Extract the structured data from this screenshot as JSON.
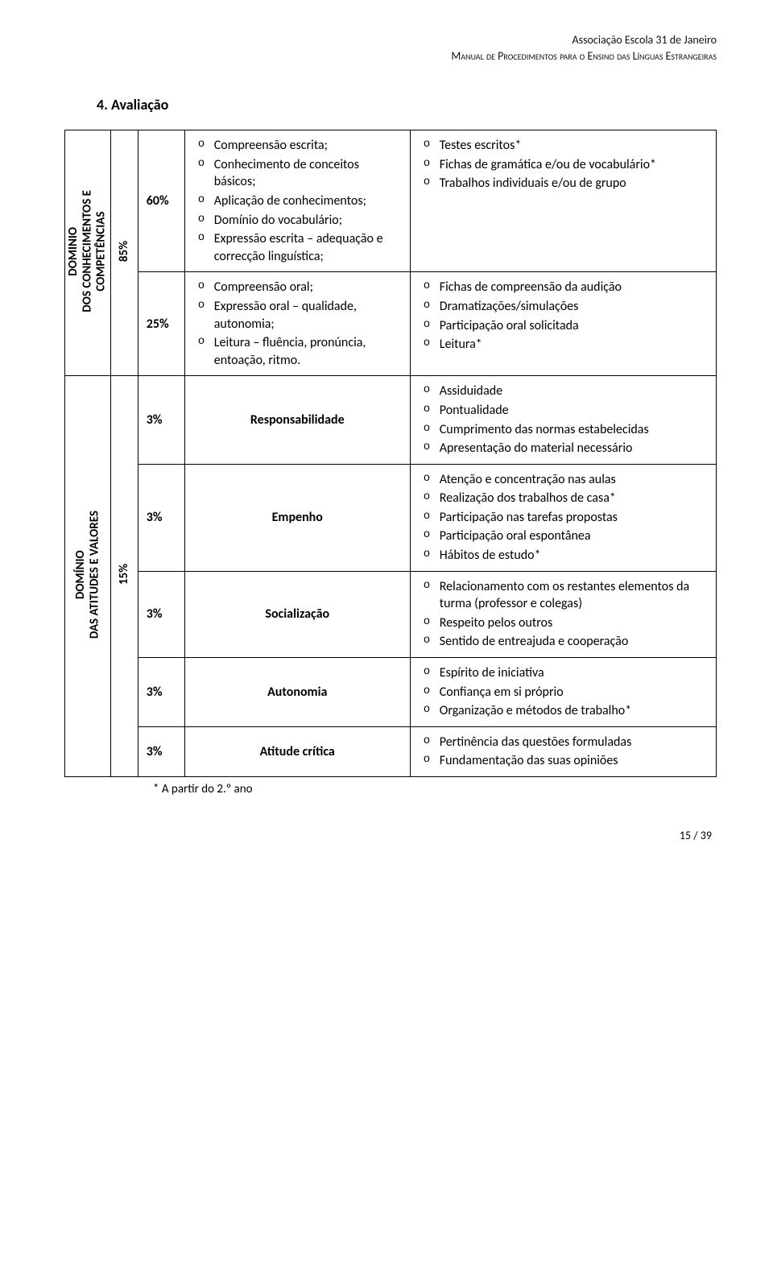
{
  "header": {
    "org": "Associação Escola 31 de Janeiro",
    "title": "Manual de Procedimentos para o Ensino das Línguas Estrangeiras"
  },
  "section_title": "4. Avaliação",
  "domain1": {
    "label_line1": "DOMINIO",
    "label_line2": "DOS CONHECIMENTOS E",
    "label_line3": "COMPETÊNCIAS",
    "pct_label": "85%",
    "row1": {
      "pct": "60%",
      "left": [
        "Compreensão escrita;",
        "Conhecimento de conceitos básicos;",
        "Aplicação de conhecimentos;",
        "Domínio do vocabulário;",
        "Expressão escrita – adequação e correcção linguística;"
      ],
      "right": [
        "Testes escritos*",
        "Fichas de gramática e/ou de vocabulário*",
        "Trabalhos individuais e/ou de grupo"
      ]
    },
    "row2": {
      "pct": "25%",
      "left": [
        "Compreensão oral;",
        "Expressão oral – qualidade, autonomia;",
        "Leitura – fluência, pronúncia, entoação, ritmo."
      ],
      "right": [
        "Fichas de compreensão da audição",
        "Dramatizações/simulações",
        "Participação oral solicitada",
        "Leitura*"
      ]
    }
  },
  "domain2": {
    "label_line1": "DOMÍNIO",
    "label_line2": "DAS ATITUDES E VALORES",
    "pct_label": "15%",
    "rows": [
      {
        "pct": "3%",
        "mid": "Responsabilidade",
        "right": [
          "Assiduidade",
          "Pontualidade",
          "Cumprimento das normas estabelecidas",
          "Apresentação do material necessário"
        ]
      },
      {
        "pct": "3%",
        "mid": "Empenho",
        "right": [
          "Atenção e concentração nas aulas",
          "Realização dos trabalhos de casa*",
          "Participação nas tarefas propostas",
          "Participação oral espontânea",
          "Hábitos de estudo*"
        ]
      },
      {
        "pct": "3%",
        "mid": "Socialização",
        "right": [
          "Relacionamento com os restantes elementos da turma (professor e colegas)",
          "Respeito pelos outros",
          "Sentido de entreajuda e cooperação"
        ]
      },
      {
        "pct": "3%",
        "mid": "Autonomia",
        "right": [
          "Espírito de iniciativa",
          "Confiança em si próprio",
          "Organização e métodos de trabalho*"
        ]
      },
      {
        "pct": "3%",
        "mid": "Atitude crítica",
        "right": [
          "Pertinência das questões formuladas",
          "Fundamentação das suas opiniões"
        ]
      }
    ]
  },
  "footnote": "* A partir do 2.º ano",
  "page_number": "15 / 39",
  "colors": {
    "text": "#000000",
    "border": "#000000",
    "background": "#ffffff"
  }
}
